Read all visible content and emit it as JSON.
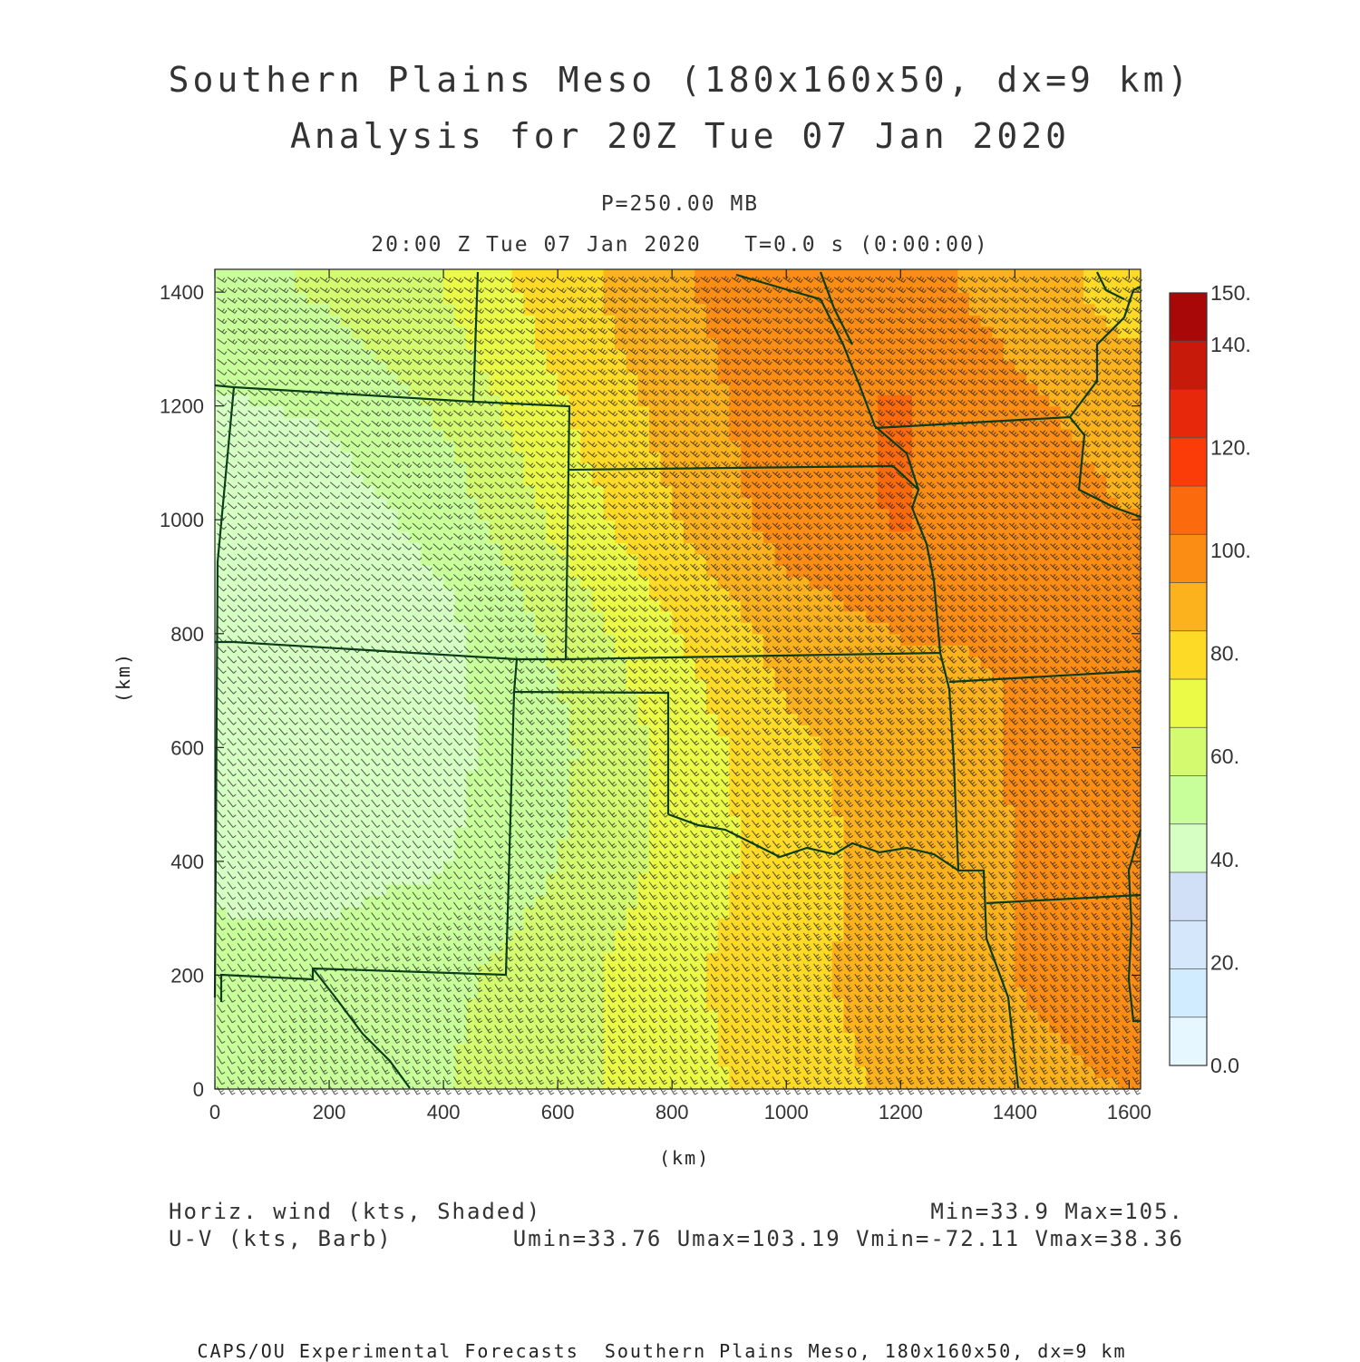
{
  "title_line1": "Southern Plains Meso (180x160x50, dx=9 km)",
  "title_line2": "Analysis for 20Z Tue 07 Jan 2020",
  "level": "P=250.00 MB",
  "valid_time": "20:00 Z Tue 07 Jan 2020   T=0.0 s (0:00:00)",
  "xlabel": "(km)",
  "ylabel": "(km)",
  "x_ticks": [
    "0",
    "200",
    "400",
    "600",
    "800",
    "1000",
    "1200",
    "1400",
    "1600"
  ],
  "y_ticks": [
    "0",
    "200",
    "400",
    "600",
    "800",
    "1000",
    "1200",
    "1400"
  ],
  "colorbar": {
    "labels": [
      "0.0",
      "20.",
      "40.",
      "60.",
      "80.",
      "100.",
      "120.",
      "140.",
      "150."
    ],
    "colors": [
      "#e6f7ff",
      "#d2ecff",
      "#d5e8fb",
      "#d2e0f7",
      "#d6ffc4",
      "#c8ff9a",
      "#d4fa70",
      "#eafa46",
      "#fcda26",
      "#fcb21c",
      "#fb8c14",
      "#fb6a0c",
      "#fb3c08",
      "#e8280a",
      "#c81a0a",
      "#a80808"
    ]
  },
  "footer_left1": "Horiz. wind (kts, Shaded)",
  "footer_left2": "U-V (kts, Barb)",
  "footer_right1": "Min=33.9 Max=105.",
  "footer_right2": "Umin=33.76 Umax=103.19 Vmin=-72.11 Vmax=38.36",
  "bottom_credit": "CAPS/OU Experimental Forecasts  Southern Plains Meso, 180x160x50, dx=9 km",
  "colors": {
    "border": "#0b3d1a",
    "barb": "#222222"
  },
  "chart_data": {
    "type": "heatmap",
    "title": "Southern Plains Meso (180x160x50, dx=9 km)",
    "xlabel": "(km)",
    "ylabel": "(km)",
    "xlim": [
      0,
      1620
    ],
    "ylim": [
      0,
      1440
    ],
    "field": "Horiz. wind (kts, Shaded)",
    "min": 33.9,
    "max": 105,
    "color_range": [
      0,
      150
    ],
    "grid_x_km": [
      0,
      200,
      400,
      600,
      800,
      1000,
      1200,
      1400,
      1600
    ],
    "grid_y_km": [
      0,
      200,
      400,
      600,
      800,
      1000,
      1200,
      1400
    ],
    "speed_kts_rows_bottom_to_top": [
      [
        50,
        52,
        56,
        62,
        70,
        80,
        86,
        90,
        94
      ],
      [
        48,
        50,
        54,
        62,
        72,
        82,
        88,
        94,
        100
      ],
      [
        46,
        44,
        46,
        56,
        68,
        80,
        88,
        94,
        102
      ],
      [
        44,
        42,
        44,
        54,
        68,
        82,
        90,
        94,
        100
      ],
      [
        42,
        40,
        44,
        58,
        74,
        88,
        94,
        94,
        96
      ],
      [
        42,
        42,
        50,
        68,
        84,
        98,
        104,
        98,
        94
      ],
      [
        46,
        48,
        58,
        74,
        88,
        100,
        104,
        96,
        90
      ],
      [
        52,
        58,
        66,
        80,
        92,
        100,
        98,
        90,
        80
      ]
    ]
  }
}
